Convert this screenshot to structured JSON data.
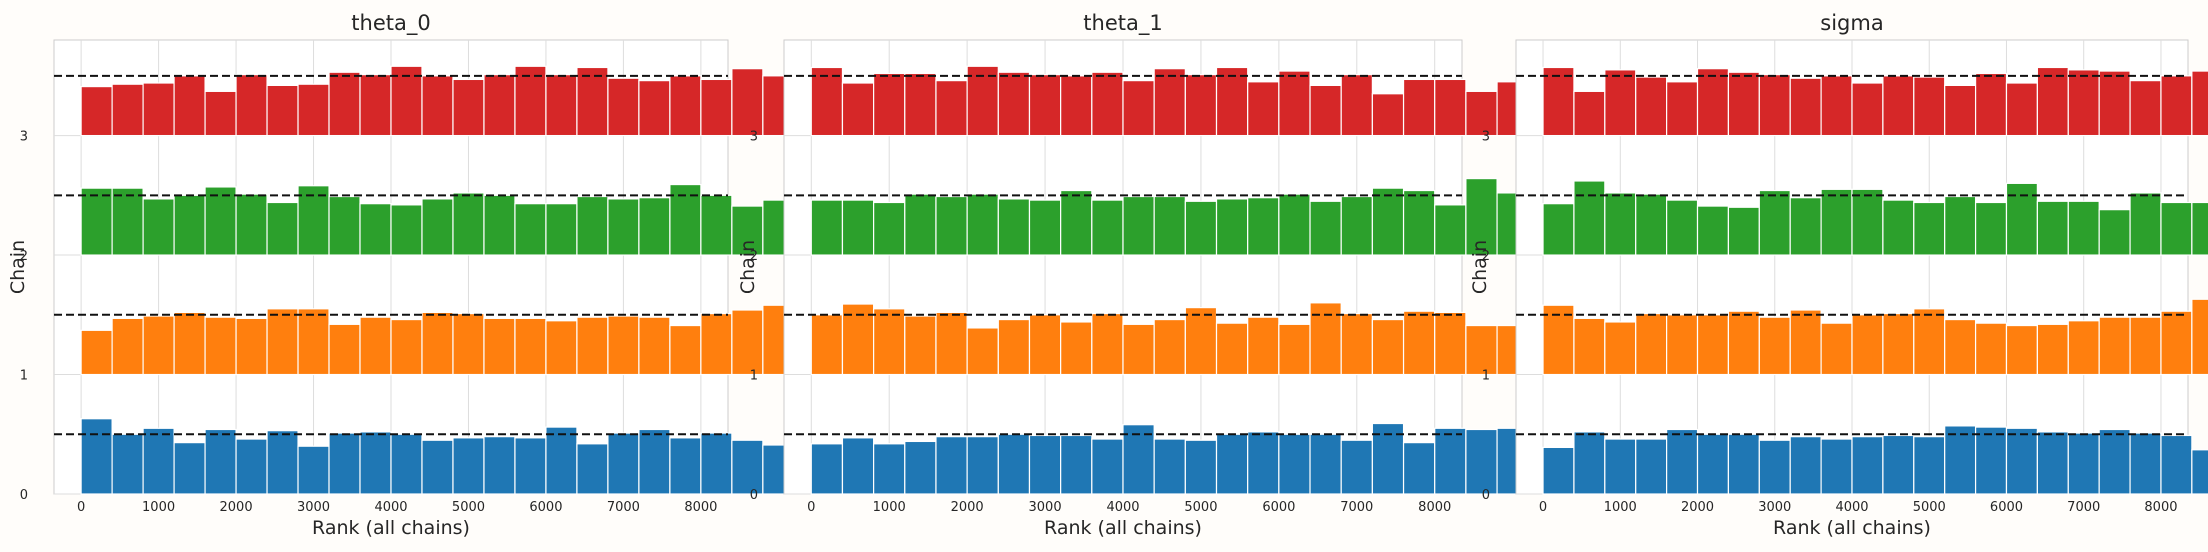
{
  "chart_data": [
    {
      "type": "bar",
      "title": "theta_0",
      "xlabel": "Rank (all chains)",
      "ylabel": "Chain",
      "xlim": [
        -350,
        8350
      ],
      "ylim": [
        0,
        3.8
      ],
      "xticks": [
        0,
        1000,
        2000,
        3000,
        4000,
        5000,
        6000,
        7000,
        8000
      ],
      "yticks": [
        0,
        1,
        2,
        3
      ],
      "bin_width": 400,
      "reference_lines": [
        0.5,
        1.5,
        2.5,
        3.5
      ],
      "grid": true,
      "series": [
        {
          "chain": 0,
          "color": "#1f77b4",
          "heights": [
            0.63,
            0.5,
            0.55,
            0.43,
            0.54,
            0.46,
            0.53,
            0.4,
            0.51,
            0.52,
            0.5,
            0.45,
            0.47,
            0.48,
            0.47,
            0.56,
            0.42,
            0.51,
            0.54,
            0.47,
            0.51,
            0.45,
            0.41
          ]
        },
        {
          "chain": 1,
          "color": "#ff7f0e",
          "heights": [
            0.37,
            0.47,
            0.49,
            0.52,
            0.48,
            0.47,
            0.55,
            0.55,
            0.42,
            0.48,
            0.46,
            0.52,
            0.51,
            0.47,
            0.47,
            0.45,
            0.48,
            0.49,
            0.48,
            0.41,
            0.51,
            0.54,
            0.58
          ]
        },
        {
          "chain": 2,
          "color": "#2ca02c",
          "heights": [
            0.56,
            0.56,
            0.47,
            0.5,
            0.57,
            0.51,
            0.44,
            0.58,
            0.49,
            0.43,
            0.42,
            0.47,
            0.52,
            0.5,
            0.43,
            0.43,
            0.49,
            0.47,
            0.48,
            0.59,
            0.5,
            0.41,
            0.46
          ]
        },
        {
          "chain": 3,
          "color": "#d62728",
          "heights": [
            0.41,
            0.43,
            0.44,
            0.5,
            0.37,
            0.51,
            0.42,
            0.43,
            0.53,
            0.51,
            0.58,
            0.5,
            0.47,
            0.51,
            0.58,
            0.51,
            0.57,
            0.48,
            0.46,
            0.5,
            0.47,
            0.56,
            0.5
          ]
        }
      ]
    },
    {
      "type": "bar",
      "title": "theta_1",
      "xlabel": "Rank (all chains)",
      "ylabel": "Chain",
      "xlim": [
        -350,
        8350
      ],
      "ylim": [
        0,
        3.8
      ],
      "xticks": [
        0,
        1000,
        2000,
        3000,
        4000,
        5000,
        6000,
        7000,
        8000
      ],
      "yticks": [
        0,
        1,
        2,
        3
      ],
      "bin_width": 400,
      "reference_lines": [
        0.5,
        1.5,
        2.5,
        3.5
      ],
      "grid": true,
      "series": [
        {
          "chain": 0,
          "color": "#1f77b4",
          "heights": [
            0.42,
            0.47,
            0.42,
            0.44,
            0.48,
            0.48,
            0.5,
            0.49,
            0.49,
            0.46,
            0.58,
            0.46,
            0.45,
            0.5,
            0.52,
            0.5,
            0.5,
            0.45,
            0.59,
            0.43,
            0.55,
            0.54,
            0.55
          ]
        },
        {
          "chain": 1,
          "color": "#ff7f0e",
          "heights": [
            0.5,
            0.59,
            0.55,
            0.49,
            0.52,
            0.39,
            0.46,
            0.5,
            0.44,
            0.51,
            0.42,
            0.46,
            0.56,
            0.43,
            0.48,
            0.42,
            0.6,
            0.51,
            0.46,
            0.53,
            0.52,
            0.41,
            0.41
          ]
        },
        {
          "chain": 2,
          "color": "#2ca02c",
          "heights": [
            0.46,
            0.46,
            0.44,
            0.51,
            0.49,
            0.51,
            0.47,
            0.46,
            0.54,
            0.46,
            0.49,
            0.49,
            0.45,
            0.47,
            0.48,
            0.51,
            0.45,
            0.49,
            0.56,
            0.54,
            0.42,
            0.64,
            0.52
          ]
        },
        {
          "chain": 3,
          "color": "#d62728",
          "heights": [
            0.57,
            0.44,
            0.52,
            0.52,
            0.46,
            0.58,
            0.53,
            0.51,
            0.5,
            0.53,
            0.46,
            0.56,
            0.51,
            0.57,
            0.45,
            0.54,
            0.42,
            0.51,
            0.35,
            0.47,
            0.47,
            0.37,
            0.45
          ]
        }
      ]
    },
    {
      "type": "bar",
      "title": "sigma",
      "xlabel": "Rank (all chains)",
      "ylabel": "Chain",
      "xlim": [
        -350,
        8350
      ],
      "ylim": [
        0,
        3.8
      ],
      "xticks": [
        0,
        1000,
        2000,
        3000,
        4000,
        5000,
        6000,
        7000,
        8000
      ],
      "yticks": [
        0,
        1,
        2,
        3
      ],
      "bin_width": 400,
      "reference_lines": [
        0.5,
        1.5,
        2.5,
        3.5
      ],
      "grid": true,
      "series": [
        {
          "chain": 0,
          "color": "#1f77b4",
          "heights": [
            0.39,
            0.52,
            0.46,
            0.46,
            0.54,
            0.5,
            0.5,
            0.45,
            0.48,
            0.46,
            0.48,
            0.49,
            0.48,
            0.57,
            0.56,
            0.55,
            0.52,
            0.51,
            0.54,
            0.51,
            0.49,
            0.37,
            0.44
          ]
        },
        {
          "chain": 1,
          "color": "#ff7f0e",
          "heights": [
            0.58,
            0.47,
            0.44,
            0.51,
            0.5,
            0.5,
            0.53,
            0.48,
            0.54,
            0.43,
            0.5,
            0.51,
            0.55,
            0.46,
            0.43,
            0.41,
            0.42,
            0.45,
            0.48,
            0.48,
            0.53,
            0.63,
            0.36
          ]
        },
        {
          "chain": 2,
          "color": "#2ca02c",
          "heights": [
            0.43,
            0.62,
            0.52,
            0.51,
            0.46,
            0.41,
            0.4,
            0.54,
            0.48,
            0.55,
            0.55,
            0.46,
            0.44,
            0.49,
            0.44,
            0.6,
            0.45,
            0.45,
            0.38,
            0.52,
            0.44,
            0.44,
            0.67
          ]
        },
        {
          "chain": 3,
          "color": "#d62728",
          "heights": [
            0.57,
            0.37,
            0.55,
            0.49,
            0.45,
            0.56,
            0.53,
            0.51,
            0.48,
            0.5,
            0.44,
            0.5,
            0.49,
            0.42,
            0.52,
            0.44,
            0.57,
            0.55,
            0.54,
            0.46,
            0.5,
            0.54,
            0.51
          ]
        }
      ]
    }
  ]
}
